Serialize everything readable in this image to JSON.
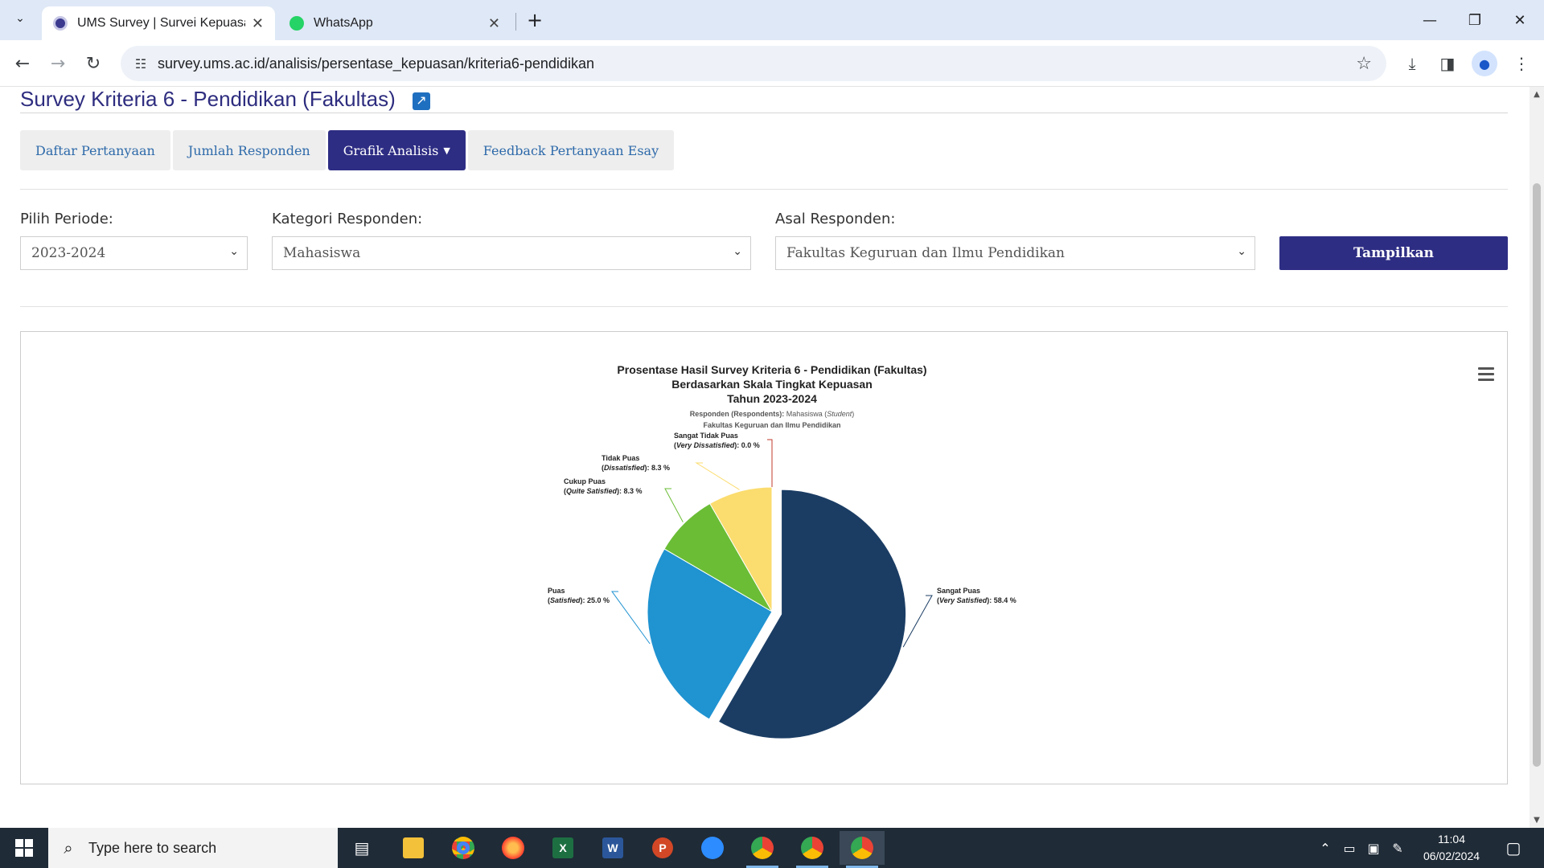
{
  "browser": {
    "tabs": [
      {
        "title": "UMS Survey | Survei Kepuasan S",
        "active": true
      },
      {
        "title": "WhatsApp",
        "active": false
      }
    ],
    "url": "survey.ums.ac.id/analisis/persentase_kepuasan/kriteria6-pendidikan"
  },
  "page": {
    "title": "Survey Kriteria 6 - Pendidikan (Fakultas)",
    "tabs": [
      "Daftar Pertanyaan",
      "Jumlah Responden",
      "Grafik Analisis",
      "Feedback Pertanyaan Esay"
    ],
    "active_tab": "Grafik Analisis",
    "filters": {
      "periode_label": "Pilih Periode:",
      "periode_value": "2023-2024",
      "kategori_label": "Kategori Responden:",
      "kategori_value": "Mahasiswa",
      "asal_label": "Asal Responden:",
      "asal_value": "Fakultas Keguruan dan Ilmu Pendidikan"
    },
    "submit_label": "Tampilkan"
  },
  "chart_data": {
    "type": "pie",
    "title": [
      "Prosentase Hasil Survey Kriteria 6 - Pendidikan (Fakultas)",
      "Berdasarkan Skala Tingkat Kepuasan",
      "Tahun 2023-2024"
    ],
    "subtitle_bold": "Responden (Respondents):",
    "subtitle_value": "Mahasiswa (",
    "subtitle_italic": "Student",
    "subtitle_close": ")",
    "subtitle_line2": "Fakultas Keguruan dan Ilmu Pendidikan",
    "slices": [
      {
        "label": "Sangat Puas",
        "sub": "Very Satisfied",
        "value": 58.4,
        "text": ": 58.4 %",
        "color": "#1b3d64"
      },
      {
        "label": "Puas",
        "sub": "Satisfied",
        "value": 25.0,
        "text": ": 25.0 %",
        "color": "#2093d1"
      },
      {
        "label": "Cukup Puas",
        "sub": "Quite Satisfied",
        "value": 8.3,
        "text": ": 8.3 %",
        "color": "#6abd35"
      },
      {
        "label": "Tidak Puas",
        "sub": "Dissatisfied",
        "value": 8.3,
        "text": ": 8.3 %",
        "color": "#fbdc6e"
      },
      {
        "label": "Sangat Tidak Puas",
        "sub": "Very Dissatisfied",
        "value": 0.0,
        "text": ": 0.0 %",
        "color": "#c0392b"
      }
    ]
  },
  "taskbar": {
    "search_placeholder": "Type here to search",
    "time": "11:04",
    "date": "06/02/2024"
  }
}
